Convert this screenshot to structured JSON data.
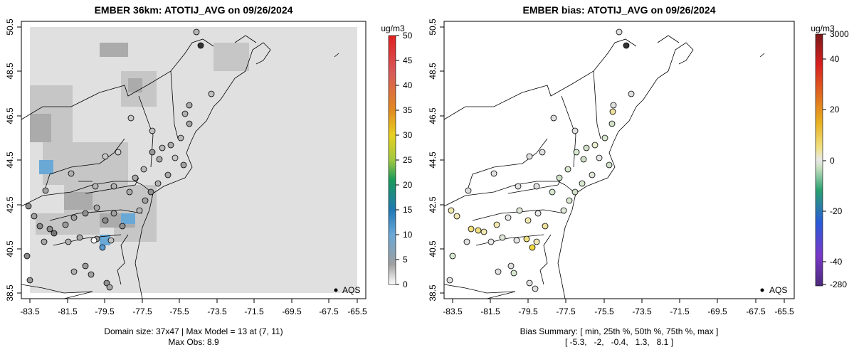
{
  "left_panel": {
    "title": "EMBER 36km: ATOTIJ_AVG on 09/26/2024",
    "x_ticks": [
      "-83.5",
      "-81.5",
      "-79.5",
      "-77.5",
      "-75.5",
      "-73.5",
      "-71.5",
      "-69.5",
      "-67.5",
      "-65.5"
    ],
    "y_ticks": [
      "38.5",
      "40.5",
      "42.5",
      "44.5",
      "46.5",
      "48.5",
      "50.5"
    ],
    "legend_label": "AQS",
    "colorbar": {
      "unit": "ug/m3",
      "labels": [
        "0",
        "5",
        "10",
        "15",
        "20",
        "25",
        "30",
        "35",
        "40",
        "45",
        "50"
      ]
    },
    "footer_line1": "Domain size: 37x47 | Max Model = 13 at (7, 11)",
    "footer_line2": "Max Obs: 8.9"
  },
  "right_panel": {
    "title": "EMBER bias: ATOTIJ_AVG on 09/26/2024",
    "x_ticks": [
      "-83.5",
      "-81.5",
      "-79.5",
      "-77.5",
      "-75.5",
      "-73.5",
      "-71.5",
      "-69.5",
      "-67.5",
      "-65.5"
    ],
    "y_ticks": [
      "38.5",
      "40.5",
      "42.5",
      "44.5",
      "46.5",
      "48.5",
      "50.5"
    ],
    "legend_label": "AQS",
    "colorbar": {
      "unit": "ug/m3",
      "labels": [
        "3000",
        "40",
        "20",
        "0",
        "-20",
        "-40",
        "-280"
      ]
    },
    "footer_line1": "Bias Summary: [ min, 25th %, 50th %, 75th %, max ]",
    "footer_line2": "[ -5.3,   -2,   -0.4,   1.3,   8.1 ]"
  }
}
